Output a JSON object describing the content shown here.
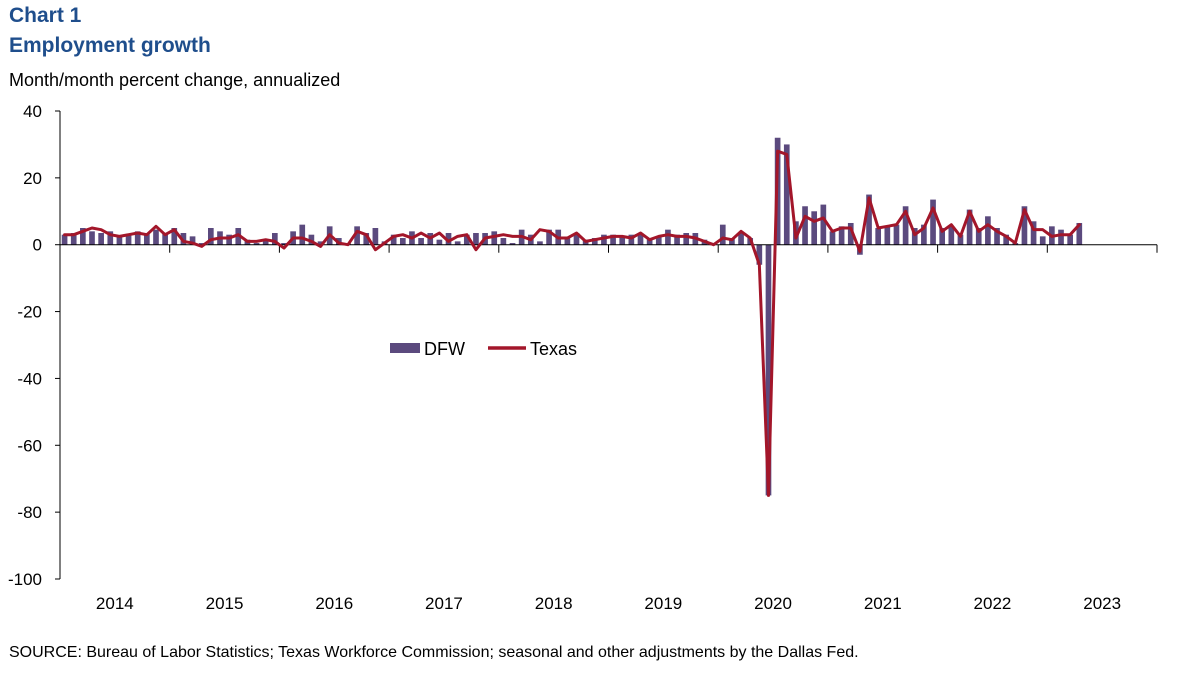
{
  "header": {
    "chart_number": "Chart 1",
    "title": "Employment growth",
    "y_unit": "Month/month percent change, annualized"
  },
  "footer": {
    "source": "SOURCE: Bureau of Labor Statistics; Texas Workforce Commission; seasonal and other adjustments by the Dallas Fed."
  },
  "colors": {
    "dfw_bar": "#5b4a7e",
    "texas_line": "#a3162a",
    "title": "#1f4e8c"
  },
  "chart_data": {
    "type": "bar",
    "title": "Employment growth",
    "ylabel": "Month/month percent change, annualized",
    "ylim": [
      -100,
      40
    ],
    "yticks": [
      "40",
      "20",
      "0",
      "-20",
      "-40",
      "-60",
      "-80",
      "-100"
    ],
    "xlim": [
      "2014-01",
      "2023-12"
    ],
    "xticks": [
      "2014",
      "2015",
      "2016",
      "2017",
      "2018",
      "2019",
      "2020",
      "2021",
      "2022",
      "2023"
    ],
    "legend_position": "center",
    "grid": false,
    "x_start": "2014-01",
    "series": [
      {
        "name": "DFW",
        "kind": "bar",
        "color": "#5b4a7e",
        "values": [
          3,
          3.5,
          5,
          4,
          3.5,
          4,
          2.5,
          3,
          4,
          3.5,
          4.5,
          3.5,
          5,
          3.5,
          2.5,
          0.5,
          5,
          4,
          3,
          5,
          1.5,
          0.5,
          1.5,
          3.5,
          0.5,
          4,
          6,
          3,
          1,
          5.5,
          2,
          0.5,
          5.5,
          3.5,
          5,
          1,
          3,
          2,
          4,
          2,
          3.5,
          1.5,
          3.5,
          1,
          3,
          3.5,
          3.5,
          4,
          2,
          0.5,
          4.5,
          3,
          1,
          4.5,
          4.5,
          2,
          3.5,
          1.5,
          2,
          3,
          3,
          2.5,
          3,
          3,
          2,
          2.5,
          4.5,
          3,
          3.5,
          3.5,
          1.5,
          0.5,
          6,
          2,
          3.5,
          2,
          -6,
          -75,
          32,
          30,
          7,
          11.5,
          10,
          12,
          4,
          5.5,
          6.5,
          -3,
          15,
          5,
          5.5,
          6,
          11.5,
          5,
          6,
          13.5,
          5,
          5.5,
          3,
          10.5,
          5,
          8.5,
          5,
          3,
          0.5,
          11.5,
          7,
          2.5,
          5.5,
          4.5,
          3,
          6.5
        ]
      },
      {
        "name": "Texas",
        "kind": "line",
        "color": "#a3162a",
        "values": [
          3,
          3,
          4,
          5,
          4.5,
          3,
          2.5,
          3,
          3.5,
          3,
          5.5,
          3,
          4.5,
          1,
          0.5,
          -0.5,
          1.5,
          2,
          2,
          3,
          1,
          1,
          1.5,
          1,
          -1,
          2,
          2,
          1,
          -0.5,
          3,
          0.5,
          0,
          4,
          3,
          -1.5,
          0.5,
          2.5,
          3,
          2,
          3.5,
          2,
          3.5,
          1,
          2.5,
          3,
          -1.5,
          2,
          2.5,
          3,
          2.5,
          2.5,
          1.5,
          4.5,
          4,
          2,
          2,
          3.5,
          1,
          1.5,
          2,
          2.5,
          2.5,
          2,
          3.5,
          1.5,
          2.5,
          3,
          2.5,
          2.5,
          2,
          1,
          0,
          2,
          1.5,
          4,
          2,
          -6,
          -75,
          28,
          27,
          2,
          8.5,
          7,
          8,
          4,
          5,
          5,
          -2,
          14,
          5,
          5.5,
          6,
          10,
          3,
          5,
          11,
          4,
          6,
          2.5,
          10,
          4,
          6,
          4,
          2.5,
          0.5,
          10.5,
          4.5,
          4.5,
          2.5,
          3,
          3,
          6
        ]
      }
    ]
  }
}
